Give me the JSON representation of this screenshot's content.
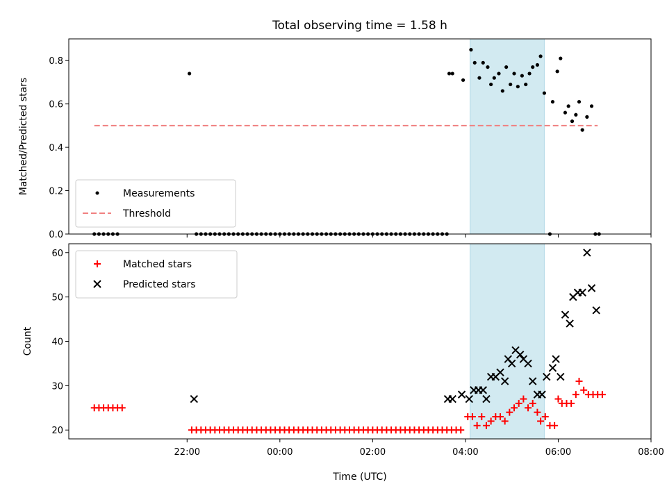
{
  "chart_data": [
    {
      "type": "scatter",
      "title": "Total observing time = 1.58 h",
      "ylabel": "Matched/Predicted stars",
      "xlim": [
        -2.55,
        10.0
      ],
      "ylim": [
        0,
        0.9
      ],
      "yticks": [
        "0.0",
        "0.2",
        "0.4",
        "0.6",
        "0.8"
      ],
      "highlight_span": [
        6.1,
        7.7
      ],
      "legend": [
        "Measurements",
        "Threshold"
      ],
      "threshold": {
        "name": "Threshold",
        "y": 0.5,
        "x_range": [
          -2.0,
          8.85
        ],
        "color": "#f08080"
      },
      "series": [
        {
          "name": "Measurements",
          "color": "#000000",
          "points": [
            [
              -2.0,
              0
            ],
            [
              -1.9,
              0
            ],
            [
              -1.8,
              0
            ],
            [
              -1.7,
              0
            ],
            [
              -1.6,
              0
            ],
            [
              -1.5,
              0
            ],
            [
              0.05,
              0.74
            ],
            [
              5.65,
              0.74
            ],
            [
              5.72,
              0.74
            ],
            [
              5.95,
              0.71
            ],
            [
              6.12,
              0.85
            ],
            [
              6.2,
              0.79
            ],
            [
              6.3,
              0.72
            ],
            [
              6.38,
              0.79
            ],
            [
              6.48,
              0.77
            ],
            [
              6.55,
              0.69
            ],
            [
              6.62,
              0.72
            ],
            [
              6.72,
              0.74
            ],
            [
              6.8,
              0.66
            ],
            [
              6.88,
              0.77
            ],
            [
              6.97,
              0.69
            ],
            [
              7.05,
              0.74
            ],
            [
              7.13,
              0.68
            ],
            [
              7.22,
              0.73
            ],
            [
              7.3,
              0.69
            ],
            [
              7.38,
              0.74
            ],
            [
              7.45,
              0.77
            ],
            [
              7.55,
              0.78
            ],
            [
              7.62,
              0.82
            ],
            [
              7.7,
              0.65
            ],
            [
              7.82,
              0.0
            ],
            [
              7.88,
              0.61
            ],
            [
              7.98,
              0.75
            ],
            [
              8.05,
              0.81
            ],
            [
              8.15,
              0.56
            ],
            [
              8.22,
              0.59
            ],
            [
              8.3,
              0.52
            ],
            [
              8.38,
              0.55
            ],
            [
              8.45,
              0.61
            ],
            [
              8.52,
              0.48
            ],
            [
              8.62,
              0.54
            ],
            [
              8.72,
              0.59
            ],
            [
              8.8,
              0.0
            ],
            [
              8.88,
              0.0
            ]
          ],
          "zero_run": {
            "x_start": 0.2,
            "x_end": 5.6,
            "step": 0.1,
            "y": 0
          }
        }
      ]
    },
    {
      "type": "scatter",
      "xlabel": "Time (UTC)",
      "ylabel": "Count",
      "xlim": [
        -2.55,
        10.0
      ],
      "ylim": [
        18,
        62
      ],
      "yticks": [
        "20",
        "30",
        "40",
        "50",
        "60"
      ],
      "xtick_values": [
        0,
        2,
        4,
        6,
        8,
        10
      ],
      "xticks": [
        "22:00",
        "00:00",
        "02:00",
        "04:00",
        "06:00",
        "08:00"
      ],
      "highlight_span": [
        6.1,
        7.7
      ],
      "legend": [
        "Matched stars",
        "Predicted stars"
      ],
      "series": [
        {
          "name": "Matched stars",
          "marker": "plus",
          "color": "#ff0000",
          "points": [
            [
              -2.0,
              25
            ],
            [
              -1.9,
              25
            ],
            [
              -1.8,
              25
            ],
            [
              -1.7,
              25
            ],
            [
              -1.6,
              25
            ],
            [
              -1.5,
              25
            ],
            [
              -1.4,
              25
            ],
            [
              6.05,
              23
            ],
            [
              6.15,
              23
            ],
            [
              6.25,
              21
            ],
            [
              6.35,
              23
            ],
            [
              6.45,
              21
            ],
            [
              6.55,
              22
            ],
            [
              6.65,
              23
            ],
            [
              6.75,
              23
            ],
            [
              6.85,
              22
            ],
            [
              6.95,
              24
            ],
            [
              7.05,
              25
            ],
            [
              7.15,
              26
            ],
            [
              7.25,
              27
            ],
            [
              7.35,
              25
            ],
            [
              7.45,
              26
            ],
            [
              7.55,
              24
            ],
            [
              7.62,
              22
            ],
            [
              7.72,
              23
            ],
            [
              7.82,
              21
            ],
            [
              7.92,
              21
            ],
            [
              8.0,
              27
            ],
            [
              8.08,
              26
            ],
            [
              8.18,
              26
            ],
            [
              8.28,
              26
            ],
            [
              8.38,
              28
            ],
            [
              8.45,
              31
            ],
            [
              8.55,
              29
            ],
            [
              8.65,
              28
            ],
            [
              8.75,
              28
            ],
            [
              8.85,
              28
            ],
            [
              8.95,
              28
            ]
          ],
          "flat_run": {
            "x_start": 0.1,
            "x_end": 5.95,
            "step": 0.1,
            "y": 20
          }
        },
        {
          "name": "Predicted stars",
          "marker": "x",
          "color": "#000000",
          "points": [
            [
              0.15,
              27
            ],
            [
              5.62,
              27
            ],
            [
              5.72,
              27
            ],
            [
              5.92,
              28
            ],
            [
              6.08,
              27
            ],
            [
              6.18,
              29
            ],
            [
              6.28,
              29
            ],
            [
              6.38,
              29
            ],
            [
              6.45,
              27
            ],
            [
              6.55,
              32
            ],
            [
              6.65,
              32
            ],
            [
              6.75,
              33
            ],
            [
              6.85,
              31
            ],
            [
              6.92,
              36
            ],
            [
              7.0,
              35
            ],
            [
              7.08,
              38
            ],
            [
              7.18,
              37
            ],
            [
              7.25,
              36
            ],
            [
              7.35,
              35
            ],
            [
              7.45,
              31
            ],
            [
              7.55,
              28
            ],
            [
              7.65,
              28
            ],
            [
              7.75,
              32
            ],
            [
              7.88,
              34
            ],
            [
              7.95,
              36
            ],
            [
              8.05,
              32
            ],
            [
              8.15,
              46
            ],
            [
              8.25,
              44
            ],
            [
              8.32,
              50
            ],
            [
              8.42,
              51
            ],
            [
              8.52,
              51
            ],
            [
              8.62,
              60
            ],
            [
              8.72,
              52
            ],
            [
              8.82,
              47
            ]
          ]
        }
      ]
    }
  ]
}
